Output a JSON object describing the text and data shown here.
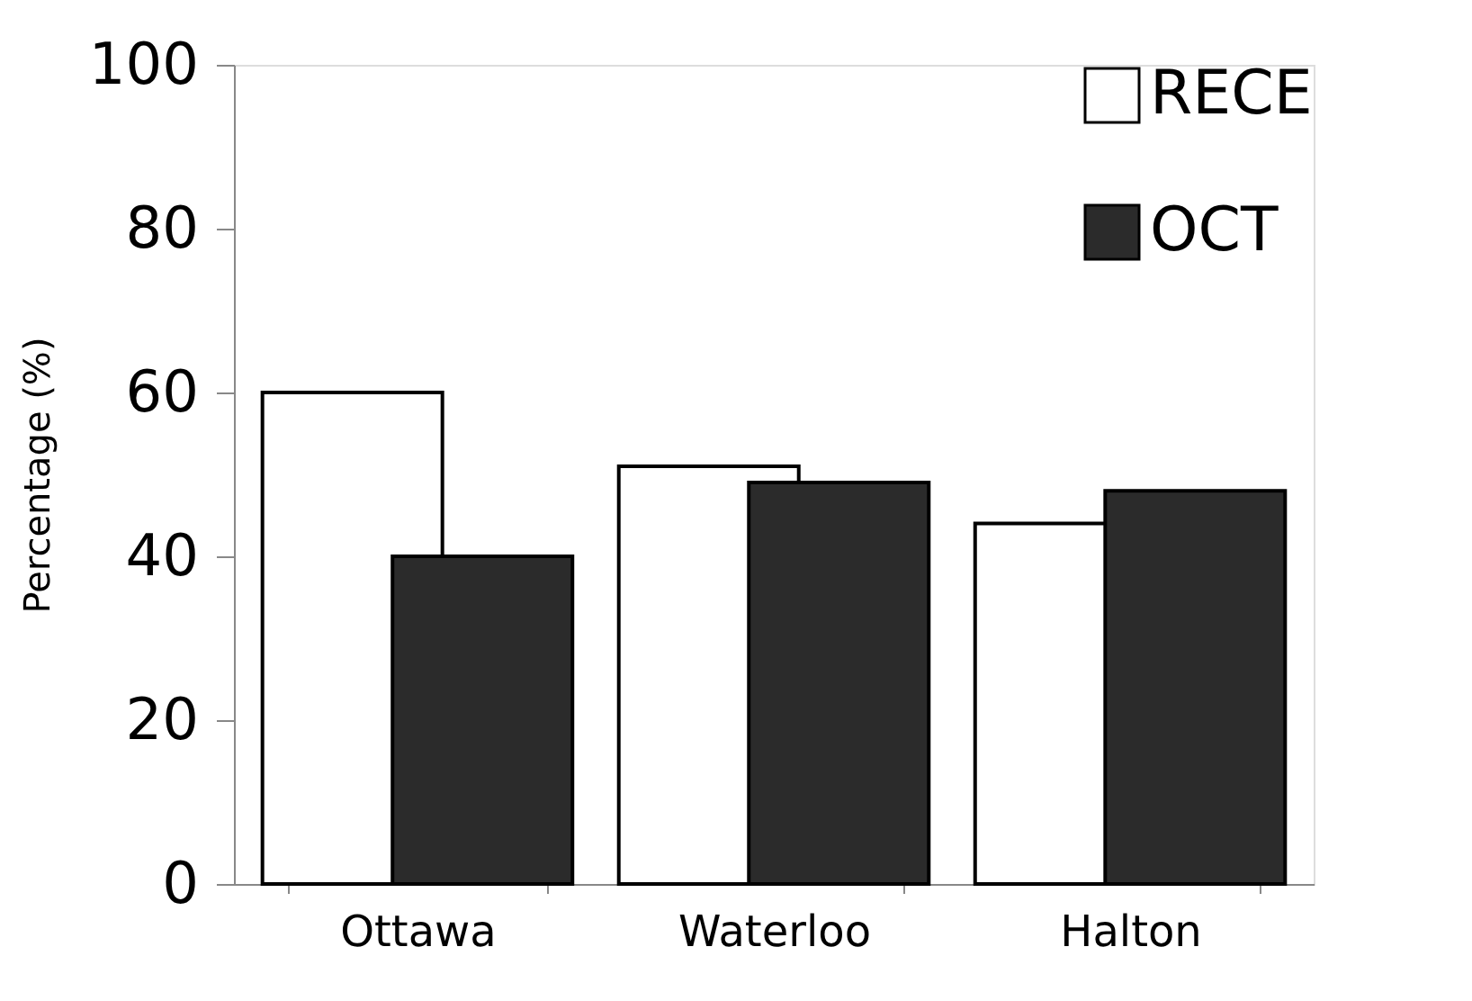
{
  "chart_data": {
    "type": "bar",
    "ylabel": "Percentage (%)",
    "categories": [
      "Ottawa",
      "Waterloo",
      "Halton"
    ],
    "series": [
      {
        "name": "RECE",
        "color": "#ffffff",
        "values": [
          60,
          51,
          44
        ]
      },
      {
        "name": "OCT",
        "color": "#2b2b2b",
        "values": [
          40,
          49,
          48
        ]
      }
    ],
    "ylim": [
      0,
      100
    ],
    "yticks": [
      0,
      20,
      40,
      60,
      80,
      100
    ],
    "grid": false,
    "legend": "top right"
  }
}
